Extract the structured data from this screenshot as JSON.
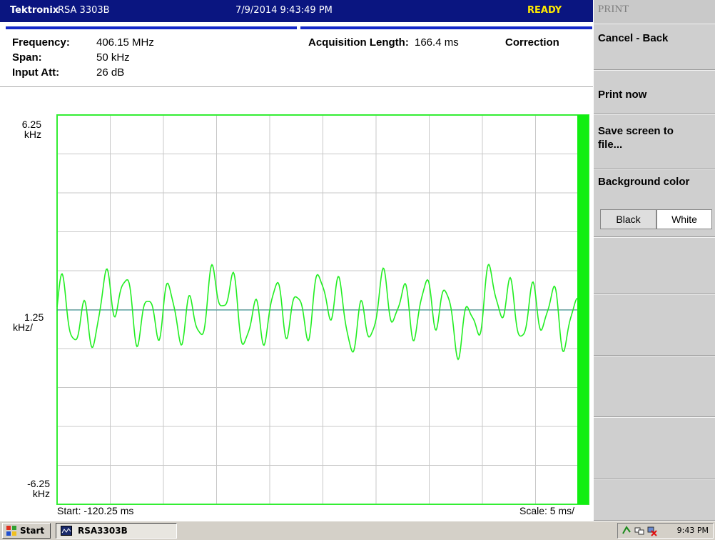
{
  "title_bar": {
    "brand": "Tektronix",
    "model": "RSA 3303B",
    "datetime": "7/9/2014 9:43:49 PM",
    "status": "READY"
  },
  "info": {
    "frequency_label": "Frequency:",
    "frequency_value": "406.15 MHz",
    "span_label": "Span:",
    "span_value": "50 kHz",
    "input_att_label": "Input Att:",
    "input_att_value": "26 dB",
    "acq_label": "Acquisition Length:",
    "acq_value": "166.4 ms",
    "correction": "Correction"
  },
  "plot": {
    "y_top_value": "6.25",
    "y_top_unit": "kHz",
    "y_mid_value": "1.25",
    "y_mid_unit": "kHz/",
    "y_bottom_value": "-6.25",
    "y_bottom_unit": "kHz",
    "start_text": "Start: -120.25 ms",
    "scale_text": "Scale: 5 ms/",
    "trace_color": "#22ee22",
    "grid_color": "#c8c8c8",
    "frame_color": "#33ee33",
    "center_line_color": "#2a8a8a"
  },
  "menu": {
    "title": "PRINT",
    "cancel": "Cancel - Back",
    "print_now": "Print now",
    "save_screen": "Save screen to\nfile...",
    "background_color": "Background color",
    "black": "Black",
    "white": "White"
  },
  "taskbar": {
    "start": "Start",
    "app": "RSA3303B",
    "time": "9:43 PM"
  }
}
